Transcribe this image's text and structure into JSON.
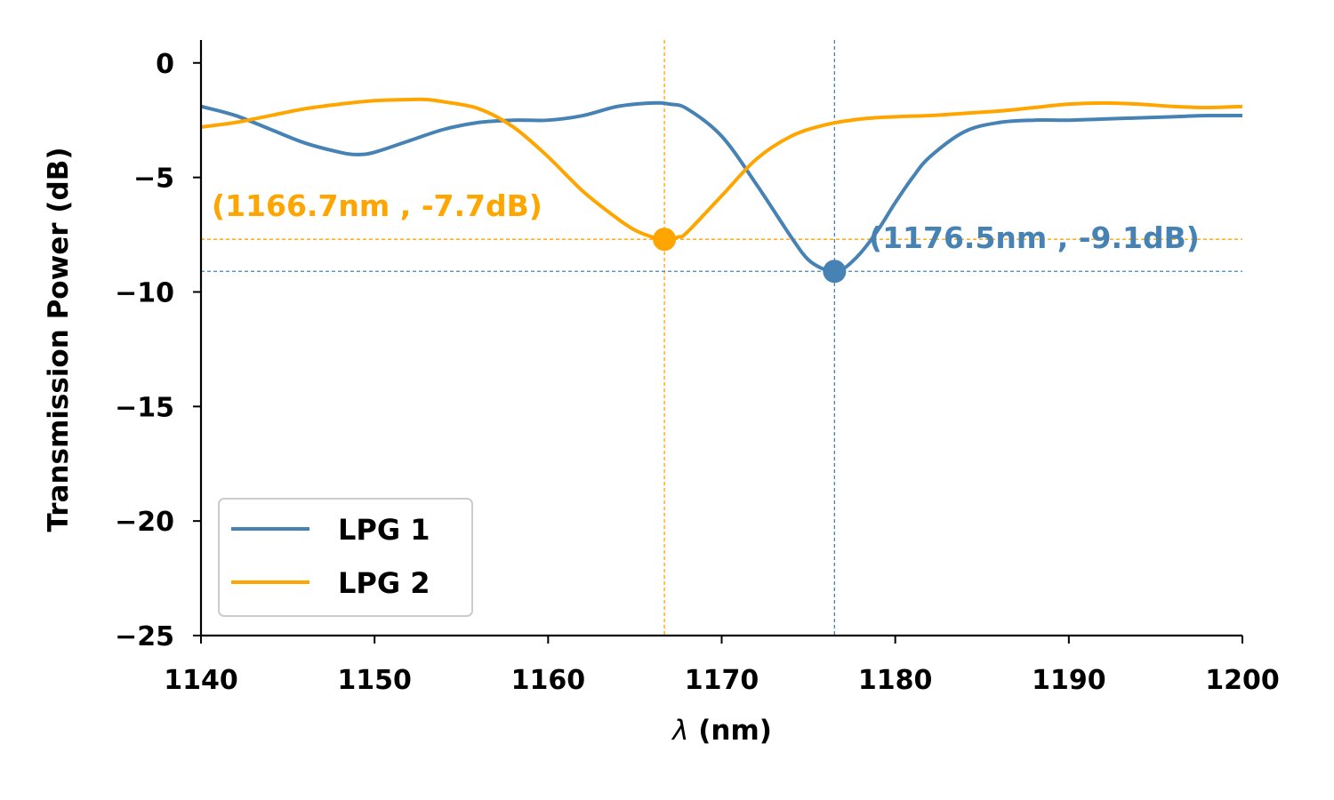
{
  "chart_data": {
    "type": "line",
    "xlabel_symbol": "λ",
    "xlabel_unit": " (nm)",
    "ylabel": "Transmission Power (dB)",
    "xlim": [
      1140,
      1200
    ],
    "ylim": [
      -25,
      1
    ],
    "xticks": [
      1140,
      1150,
      1160,
      1170,
      1180,
      1190,
      1200
    ],
    "xtick_labels": [
      "1140",
      "1150",
      "1160",
      "1170",
      "1180",
      "1190",
      "1200"
    ],
    "yticks": [
      0,
      -5,
      -10,
      -15,
      -20,
      -25
    ],
    "ytick_labels": [
      "0",
      "−5",
      "−10",
      "−15",
      "−20",
      "−25"
    ],
    "grid": false,
    "legend_position": "lower-left",
    "series": [
      {
        "name": "LPG 1",
        "color": "#4682b4",
        "x": [
          1140,
          1142,
          1144,
          1146,
          1148,
          1149,
          1150,
          1152,
          1154,
          1156,
          1158,
          1160,
          1162,
          1164,
          1166,
          1167,
          1168,
          1170,
          1172,
          1174,
          1175,
          1176,
          1176.5,
          1177,
          1178,
          1179,
          1180,
          1181,
          1182,
          1184,
          1186,
          1188,
          1190,
          1192,
          1194,
          1196,
          1198,
          1200
        ],
        "y": [
          -1.9,
          -2.3,
          -2.9,
          -3.5,
          -3.9,
          -4.0,
          -3.9,
          -3.4,
          -2.9,
          -2.6,
          -2.5,
          -2.5,
          -2.3,
          -1.9,
          -1.75,
          -1.8,
          -2.0,
          -3.2,
          -5.3,
          -7.6,
          -8.6,
          -9.05,
          -9.1,
          -9.0,
          -8.3,
          -7.3,
          -6.1,
          -5.0,
          -4.1,
          -3.0,
          -2.6,
          -2.5,
          -2.5,
          -2.45,
          -2.4,
          -2.35,
          -2.3,
          -2.3
        ]
      },
      {
        "name": "LPG 2",
        "color": "#ffa500",
        "x": [
          1140,
          1142,
          1144,
          1146,
          1148,
          1150,
          1152,
          1153,
          1154,
          1156,
          1158,
          1160,
          1162,
          1164,
          1165,
          1166,
          1166.7,
          1167.5,
          1168,
          1170,
          1172,
          1174,
          1176,
          1178,
          1180,
          1182,
          1184,
          1186,
          1188,
          1190,
          1192,
          1194,
          1196,
          1198,
          1200
        ],
        "y": [
          -2.8,
          -2.6,
          -2.3,
          -2.0,
          -1.8,
          -1.65,
          -1.6,
          -1.6,
          -1.7,
          -2.0,
          -2.8,
          -4.1,
          -5.6,
          -6.8,
          -7.3,
          -7.6,
          -7.7,
          -7.6,
          -7.4,
          -5.8,
          -4.2,
          -3.2,
          -2.7,
          -2.45,
          -2.35,
          -2.3,
          -2.2,
          -2.1,
          -1.95,
          -1.8,
          -1.75,
          -1.8,
          -1.9,
          -1.95,
          -1.9
        ]
      }
    ],
    "annotations": [
      {
        "text": "(1166.7nm , -7.7dB)",
        "x": 1166.7,
        "y": -7.7,
        "color": "#ffa500"
      },
      {
        "text": "(1176.5nm , -9.1dB)",
        "x": 1176.5,
        "y": -9.1,
        "color": "#4682b4"
      }
    ]
  }
}
